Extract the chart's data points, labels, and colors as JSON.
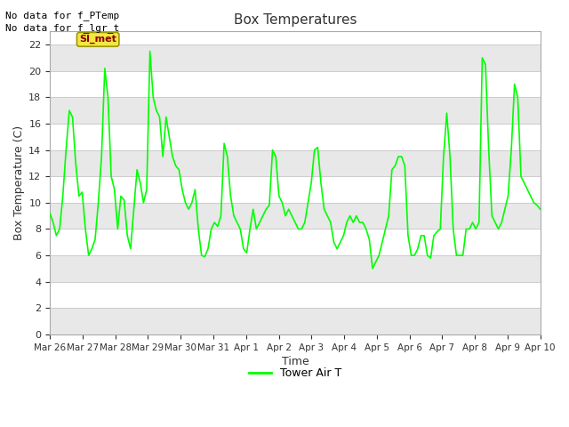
{
  "title": "Box Temperatures",
  "xlabel": "Time",
  "ylabel": "Box Temperature (C)",
  "no_data_text": [
    "No data for f_PTemp",
    "No data for f_lgr_t"
  ],
  "si_met_label": "SI_met",
  "legend_label": "Tower Air T",
  "line_color": "#00FF00",
  "ylim": [
    0,
    23
  ],
  "yticks": [
    0,
    2,
    4,
    6,
    8,
    10,
    12,
    14,
    16,
    18,
    20,
    22
  ],
  "x_tick_labels": [
    "Mar 26",
    "Mar 27",
    "Mar 28",
    "Mar 29",
    "Mar 30",
    "Mar 31",
    "Apr 1",
    "Apr 2",
    "Apr 3",
    "Apr 4",
    "Apr 5",
    "Apr 6",
    "Apr 7",
    "Apr 8",
    "Apr 9",
    "Apr 10"
  ],
  "background_color": "#FFFFFF",
  "plot_bg_color": "#FFFFFF",
  "stripe_color": "#E8E8E8",
  "grid_line_color": "#CCCCCC",
  "title_color": "#333333",
  "text_color": "#333333",
  "tower_air_t": [
    9.2,
    8.5,
    7.5,
    8.0,
    10.5,
    14.0,
    17.0,
    16.5,
    13.0,
    10.5,
    10.8,
    8.0,
    6.0,
    6.5,
    7.2,
    10.0,
    13.5,
    20.2,
    18.0,
    12.0,
    11.0,
    8.0,
    10.5,
    10.2,
    7.5,
    6.5,
    9.5,
    12.5,
    11.5,
    10.0,
    11.0,
    21.5,
    18.0,
    17.0,
    16.5,
    13.5,
    16.5,
    15.0,
    13.5,
    12.8,
    12.5,
    11.0,
    10.0,
    9.5,
    10.0,
    11.0,
    8.0,
    6.0,
    5.9,
    6.5,
    8.0,
    8.5,
    8.2,
    9.0,
    14.5,
    13.5,
    10.5,
    9.0,
    8.5,
    8.0,
    6.5,
    6.2,
    8.0,
    9.5,
    8.0,
    8.5,
    9.0,
    9.5,
    9.8,
    14.0,
    13.5,
    10.5,
    10.0,
    9.0,
    9.5,
    9.0,
    8.5,
    8.0,
    8.0,
    8.5,
    10.0,
    11.5,
    14.0,
    14.2,
    11.5,
    9.5,
    9.0,
    8.5,
    7.0,
    6.5,
    7.0,
    7.5,
    8.5,
    9.0,
    8.5,
    9.0,
    8.5,
    8.5,
    8.0,
    7.2,
    5.0,
    5.5,
    6.0,
    7.0,
    8.0,
    9.0,
    12.5,
    12.8,
    13.5,
    13.5,
    12.8,
    7.5,
    6.0,
    6.0,
    6.5,
    7.5,
    7.5,
    6.0,
    5.8,
    7.5,
    7.8,
    8.0,
    13.5,
    16.8,
    13.5,
    8.0,
    6.0,
    6.0,
    6.0,
    8.0,
    8.0,
    8.5,
    8.0,
    8.5,
    21.0,
    20.5,
    14.0,
    9.0,
    8.5,
    8.0,
    8.5,
    9.5,
    10.5,
    14.0,
    19.0,
    18.0,
    12.0,
    11.5,
    11.0,
    10.5,
    10.0,
    9.8,
    9.5
  ]
}
